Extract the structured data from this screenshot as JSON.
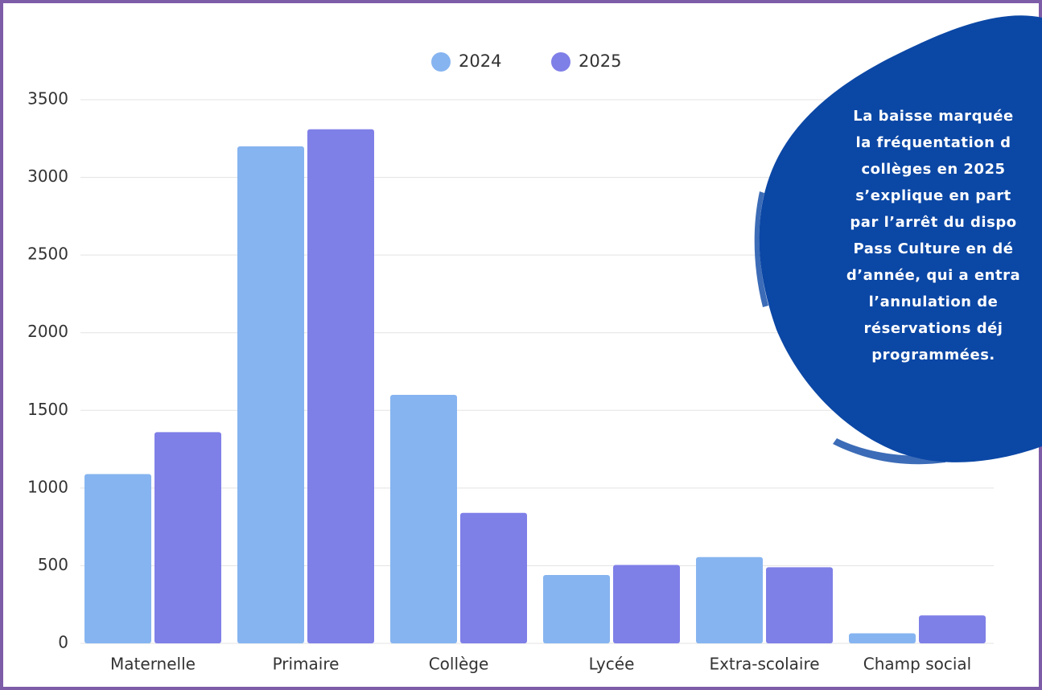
{
  "chart_data": {
    "type": "bar",
    "categories": [
      "Maternelle",
      "Primaire",
      "Collège",
      "Lycée",
      "Extra-scolaire",
      "Champ social"
    ],
    "series": [
      {
        "name": "2024",
        "color": "#86b4f0",
        "values": [
          1090,
          3200,
          1600,
          440,
          555,
          65
        ]
      },
      {
        "name": "2025",
        "color": "#7f7fe8",
        "values": [
          1360,
          3310,
          840,
          505,
          490,
          180
        ]
      }
    ],
    "ylim": [
      0,
      3500
    ],
    "yticks": [
      0,
      500,
      1000,
      1500,
      2000,
      2500,
      3000,
      3500
    ],
    "grid": true,
    "legend": "top",
    "annotation": [
      "La baisse marquée",
      "la fréquentation d",
      "collèges en 2025",
      "s’explique en part",
      "par l’arrêt du dispo",
      "Pass Culture en dé",
      "d’année, qui a entra",
      "l’annulation de",
      "réservations déj",
      "programmées."
    ]
  }
}
